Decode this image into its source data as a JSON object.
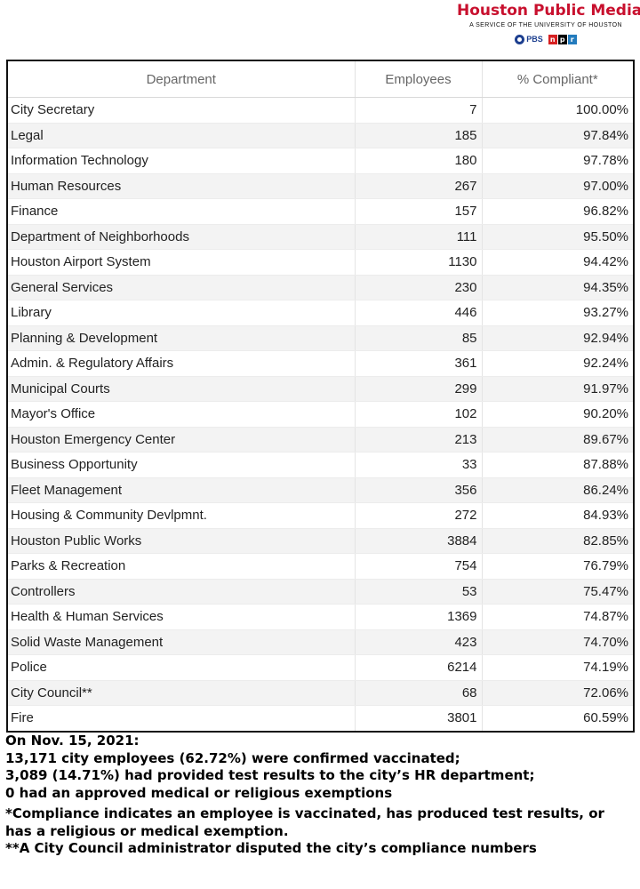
{
  "brand": {
    "name": "Houston Public Media",
    "tagline": "A SERVICE OF THE UNIVERSITY OF HOUSTON",
    "pbs": "PBS",
    "npr": [
      "n",
      "p",
      "r"
    ],
    "color": "#c8102e"
  },
  "table": {
    "headers": {
      "department": "Department",
      "employees": "Employees",
      "compliant": "% Compliant*"
    },
    "rows": [
      {
        "department": "City Secretary",
        "employees": "7",
        "compliant": "100.00%"
      },
      {
        "department": "Legal",
        "employees": "185",
        "compliant": "97.84%"
      },
      {
        "department": "Information Technology",
        "employees": "180",
        "compliant": "97.78%"
      },
      {
        "department": "Human Resources",
        "employees": "267",
        "compliant": "97.00%"
      },
      {
        "department": "Finance",
        "employees": "157",
        "compliant": "96.82%"
      },
      {
        "department": "Department of Neighborhoods",
        "employees": "111",
        "compliant": "95.50%"
      },
      {
        "department": "Houston Airport System",
        "employees": "1130",
        "compliant": "94.42%"
      },
      {
        "department": "General Services",
        "employees": "230",
        "compliant": "94.35%"
      },
      {
        "department": "Library",
        "employees": "446",
        "compliant": "93.27%"
      },
      {
        "department": "Planning & Development",
        "employees": "85",
        "compliant": "92.94%"
      },
      {
        "department": "Admin. & Regulatory Affairs",
        "employees": "361",
        "compliant": "92.24%"
      },
      {
        "department": "Municipal Courts",
        "employees": "299",
        "compliant": "91.97%"
      },
      {
        "department": "Mayor's Office",
        "employees": "102",
        "compliant": "90.20%"
      },
      {
        "department": "Houston Emergency Center",
        "employees": "213",
        "compliant": "89.67%"
      },
      {
        "department": "Business Opportunity",
        "employees": "33",
        "compliant": "87.88%"
      },
      {
        "department": "Fleet Management",
        "employees": "356",
        "compliant": "86.24%"
      },
      {
        "department": "Housing & Community Devlpmnt.",
        "employees": "272",
        "compliant": "84.93%"
      },
      {
        "department": "Houston Public Works",
        "employees": "3884",
        "compliant": "82.85%"
      },
      {
        "department": "Parks & Recreation",
        "employees": "754",
        "compliant": "76.79%"
      },
      {
        "department": "Controllers",
        "employees": "53",
        "compliant": "75.47%"
      },
      {
        "department": "Health & Human Services",
        "employees": "1369",
        "compliant": "74.87%"
      },
      {
        "department": "Solid Waste Management",
        "employees": "423",
        "compliant": "74.70%"
      },
      {
        "department": "Police",
        "employees": "6214",
        "compliant": "74.19%"
      },
      {
        "department": "City Council**",
        "employees": "68",
        "compliant": "72.06%"
      },
      {
        "department": "Fire",
        "employees": "3801",
        "compliant": "60.59%"
      }
    ]
  },
  "notes": {
    "date_line": "On Nov. 15, 2021:",
    "vaccinated": "13,171 city employees (62.72%) were confirmed vaccinated;",
    "tested": "3,089 (14.71%) had provided test results to the city’s HR department;",
    "exemptions": "0 had an approved medical or religious exemptions",
    "footnote1": "*Compliance indicates an employee is vaccinated, has produced test results, or has a religious or medical exemption.",
    "footnote2": "**A City Council administrator disputed the city’s compliance numbers"
  }
}
